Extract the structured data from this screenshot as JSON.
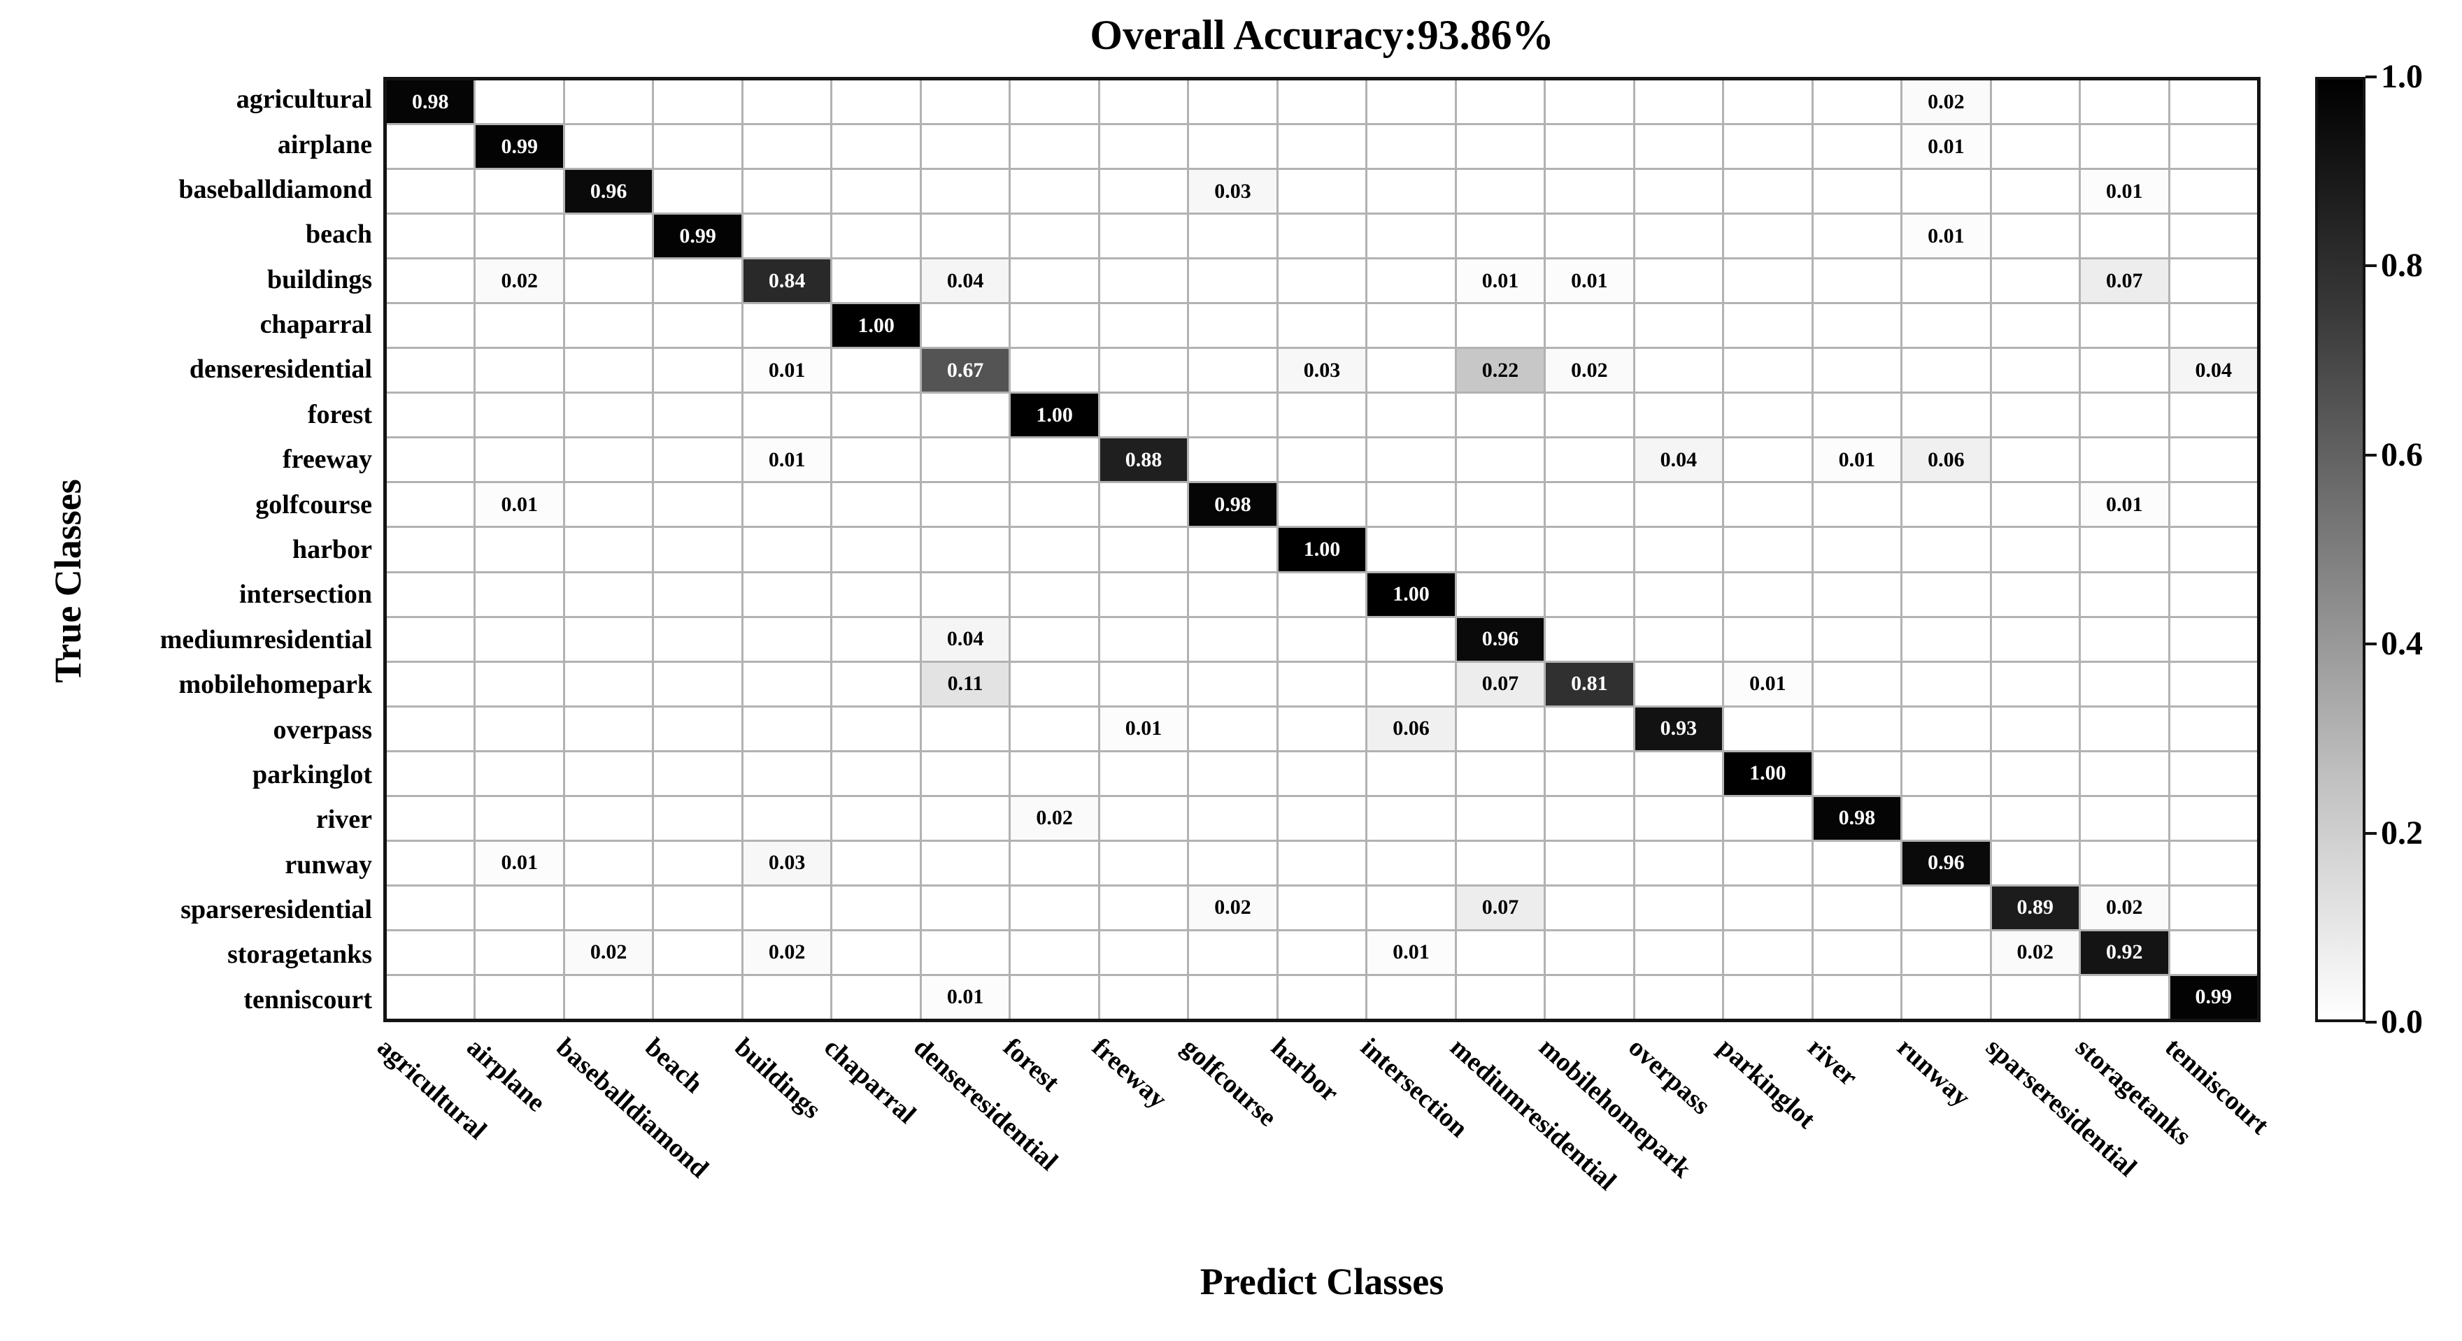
{
  "title": "Overall Accuracy:93.86%",
  "colors": {
    "cell_high": "#000000",
    "cell_low": "#ffffff",
    "grid_line": "#b2b2b2",
    "border": "#141414",
    "text_on_dark": "#ffffff",
    "text_on_light": "#000000"
  },
  "chart_data": {
    "type": "heatmap",
    "title": "Overall Accuracy:93.86%",
    "xlabel": "Predict Classes",
    "ylabel": "True Classes",
    "legend_position": "right-colorbar",
    "value_range": [
      0.0,
      1.0
    ],
    "value_format": "two-decimals",
    "grid": true,
    "categories": [
      "agricultural",
      "airplane",
      "baseballdiamond",
      "beach",
      "buildings",
      "chaparral",
      "denseresidential",
      "forest",
      "freeway",
      "golfcourse",
      "harbor",
      "intersection",
      "mediumresidential",
      "mobilehomepark",
      "overpass",
      "parkinglot",
      "river",
      "runway",
      "sparseresidential",
      "storagetanks",
      "tenniscourt"
    ],
    "matrix": [
      [
        0.98,
        null,
        null,
        null,
        null,
        null,
        null,
        null,
        null,
        null,
        null,
        null,
        null,
        null,
        null,
        null,
        null,
        0.02,
        null,
        null,
        null
      ],
      [
        null,
        0.99,
        null,
        null,
        null,
        null,
        null,
        null,
        null,
        null,
        null,
        null,
        null,
        null,
        null,
        null,
        null,
        0.01,
        null,
        null,
        null
      ],
      [
        null,
        null,
        0.96,
        null,
        null,
        null,
        null,
        null,
        null,
        0.03,
        null,
        null,
        null,
        null,
        null,
        null,
        null,
        null,
        null,
        0.01,
        null
      ],
      [
        null,
        null,
        null,
        0.99,
        null,
        null,
        null,
        null,
        null,
        null,
        null,
        null,
        null,
        null,
        null,
        null,
        null,
        0.01,
        null,
        null,
        null
      ],
      [
        null,
        0.02,
        null,
        null,
        0.84,
        null,
        0.04,
        null,
        null,
        null,
        null,
        null,
        0.01,
        0.01,
        null,
        null,
        null,
        null,
        null,
        0.07,
        null
      ],
      [
        null,
        null,
        null,
        null,
        null,
        1.0,
        null,
        null,
        null,
        null,
        null,
        null,
        null,
        null,
        null,
        null,
        null,
        null,
        null,
        null,
        null
      ],
      [
        null,
        null,
        null,
        null,
        0.01,
        null,
        0.67,
        null,
        null,
        null,
        0.03,
        null,
        0.22,
        0.02,
        null,
        null,
        null,
        null,
        null,
        null,
        0.04
      ],
      [
        null,
        null,
        null,
        null,
        null,
        null,
        null,
        1.0,
        null,
        null,
        null,
        null,
        null,
        null,
        null,
        null,
        null,
        null,
        null,
        null,
        null
      ],
      [
        null,
        null,
        null,
        null,
        0.01,
        null,
        null,
        null,
        0.88,
        null,
        null,
        null,
        null,
        null,
        0.04,
        null,
        0.01,
        0.06,
        null,
        null,
        null
      ],
      [
        null,
        0.01,
        null,
        null,
        null,
        null,
        null,
        null,
        null,
        0.98,
        null,
        null,
        null,
        null,
        null,
        null,
        null,
        null,
        null,
        0.01,
        null
      ],
      [
        null,
        null,
        null,
        null,
        null,
        null,
        null,
        null,
        null,
        null,
        1.0,
        null,
        null,
        null,
        null,
        null,
        null,
        null,
        null,
        null,
        null
      ],
      [
        null,
        null,
        null,
        null,
        null,
        null,
        null,
        null,
        null,
        null,
        null,
        1.0,
        null,
        null,
        null,
        null,
        null,
        null,
        null,
        null,
        null
      ],
      [
        null,
        null,
        null,
        null,
        null,
        null,
        0.04,
        null,
        null,
        null,
        null,
        null,
        0.96,
        null,
        null,
        null,
        null,
        null,
        null,
        null,
        null
      ],
      [
        null,
        null,
        null,
        null,
        null,
        null,
        0.11,
        null,
        null,
        null,
        null,
        null,
        0.07,
        0.81,
        null,
        0.01,
        null,
        null,
        null,
        null,
        null
      ],
      [
        null,
        null,
        null,
        null,
        null,
        null,
        null,
        null,
        0.01,
        null,
        null,
        0.06,
        null,
        null,
        0.93,
        null,
        null,
        null,
        null,
        null,
        null
      ],
      [
        null,
        null,
        null,
        null,
        null,
        null,
        null,
        null,
        null,
        null,
        null,
        null,
        null,
        null,
        null,
        1.0,
        null,
        null,
        null,
        null,
        null
      ],
      [
        null,
        null,
        null,
        null,
        null,
        null,
        null,
        0.02,
        null,
        null,
        null,
        null,
        null,
        null,
        null,
        null,
        0.98,
        null,
        null,
        null,
        null
      ],
      [
        null,
        0.01,
        null,
        null,
        0.03,
        null,
        null,
        null,
        null,
        null,
        null,
        null,
        null,
        null,
        null,
        null,
        null,
        0.96,
        null,
        null,
        null
      ],
      [
        null,
        null,
        null,
        null,
        null,
        null,
        null,
        null,
        null,
        0.02,
        null,
        null,
        0.07,
        null,
        null,
        null,
        null,
        null,
        0.89,
        0.02,
        null
      ],
      [
        null,
        null,
        0.02,
        null,
        0.02,
        null,
        null,
        null,
        null,
        null,
        null,
        0.01,
        null,
        null,
        null,
        null,
        null,
        null,
        0.02,
        0.92,
        null
      ],
      [
        null,
        null,
        null,
        null,
        null,
        null,
        0.01,
        null,
        null,
        null,
        null,
        null,
        null,
        null,
        null,
        null,
        null,
        null,
        null,
        null,
        0.99
      ]
    ],
    "colorbar": {
      "min_label": "0.0",
      "max_label": "1.0",
      "ticks": [
        "1.0",
        "0.8",
        "0.6",
        "0.4",
        "0.2",
        "0.0"
      ],
      "colormap": "greys (white=0.0 to black=1.0)"
    }
  }
}
